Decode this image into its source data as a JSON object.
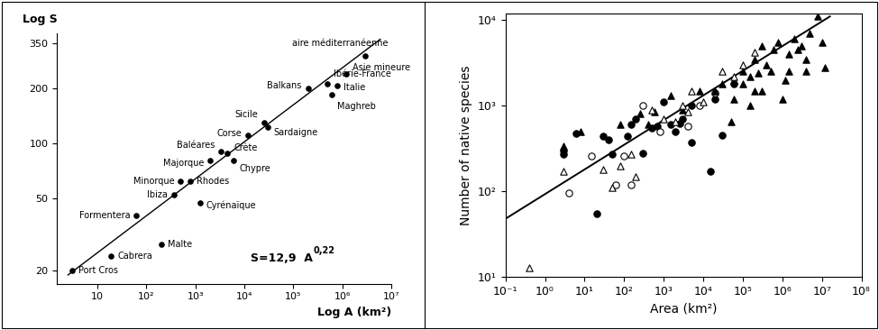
{
  "chart_data": [
    {
      "type": "scatter",
      "log": true,
      "y_label": "Log S",
      "x_label": "Log A (km²)",
      "equation": {
        "base": "S=12,9  A",
        "exponent": "0,22"
      },
      "labels": [
        "Port Cros",
        "Cabrera",
        "Malte",
        "Formentera",
        "Ibiza",
        "Cyrénaïque",
        "Minorque",
        "Rhodes",
        "Majorque",
        "Baléares",
        "Crète",
        "Chypre",
        "Corse",
        "Sicile",
        "Sardaigne",
        "Balkans",
        "Ibérie-France",
        "Italie",
        "Maghreb",
        "Asie mineure",
        "aire méditerranéenne"
      ],
      "x": [
        3,
        19,
        200,
        62,
        360,
        1250,
        500,
        800,
        2000,
        3300,
        4500,
        6000,
        12000,
        25000,
        30000,
        200000,
        500000,
        800000,
        600000,
        1200000,
        3000000
      ],
      "values": [
        20,
        24,
        28,
        40,
        52,
        47,
        62,
        62,
        80,
        90,
        88,
        80,
        110,
        130,
        122,
        200,
        210,
        205,
        185,
        240,
        300
      ],
      "color": "#000000",
      "marker": "circle",
      "fit_line": {
        "x": [
          2.5,
          6000000
        ],
        "values": [
          19,
          370
        ]
      },
      "xlim": [
        1.5,
        10000000
      ],
      "xticks": [
        10,
        {
          "value": 100,
          "label": "10²"
        },
        {
          "value": 1000,
          "label": "10³"
        },
        {
          "value": 10000,
          "label": "10⁴"
        },
        {
          "value": 100000,
          "label": "10⁵"
        },
        {
          "value": 1000000,
          "label": "10⁶"
        },
        {
          "value": 10000000,
          "label": "10⁷"
        }
      ],
      "ylim": [
        17,
        400
      ],
      "yticks": [
        20,
        50,
        100,
        200,
        350
      ]
    },
    {
      "type": "scatter",
      "log": true,
      "x_label": "Area (km²)",
      "y_label": "Number of native species",
      "series": [
        {
          "marker": "circle",
          "color": "#000000",
          "x": [
            3,
            3,
            6,
            20,
            30,
            40,
            50,
            120,
            150,
            200,
            300,
            500,
            700,
            1000,
            1500,
            2000,
            2500,
            3000,
            5000,
            5000,
            15000,
            20000,
            30000,
            60000
          ],
          "values": [
            270,
            300,
            480,
            55,
            440,
            400,
            270,
            440,
            600,
            700,
            280,
            550,
            580,
            1100,
            600,
            500,
            620,
            700,
            370,
            1000,
            170,
            1200,
            450,
            1800
          ]
        },
        {
          "marker": "circle",
          "color": "#ffffff",
          "x": [
            4,
            15,
            60,
            100,
            150,
            300,
            800,
            4000,
            8000,
            20000
          ],
          "values": [
            95,
            260,
            120,
            260,
            120,
            1000,
            500,
            580,
            1000,
            1400
          ]
        },
        {
          "marker": "triangle",
          "color": "#000000",
          "x": [
            3,
            8,
            80,
            250,
            400,
            600,
            1500,
            3000,
            8000,
            20000,
            30000,
            60000,
            100000,
            150000,
            200000,
            200000,
            300000,
            400000,
            500000,
            600000,
            800000,
            1000000,
            1200000,
            1500000,
            2000000,
            2500000,
            3000000,
            4000000,
            4000000,
            5000000,
            8000000,
            10000000,
            12000000,
            150000,
            60000,
            250000,
            1500000,
            50000,
            100000,
            300000
          ],
          "values": [
            340,
            500,
            600,
            800,
            600,
            850,
            1300,
            900,
            1500,
            1500,
            1800,
            2000,
            2500,
            2200,
            1500,
            3500,
            5000,
            3000,
            2500,
            4500,
            5500,
            1200,
            2000,
            2500,
            6000,
            4500,
            5000,
            3500,
            2500,
            7000,
            11000,
            5500,
            2800,
            1000,
            1200,
            2400,
            4000,
            650,
            1800,
            1500
          ]
        },
        {
          "marker": "triangle",
          "color": "#ffffff",
          "x": [
            0.4,
            3,
            30,
            50,
            80,
            150,
            200,
            500,
            1000,
            2000,
            3000,
            5000,
            4000,
            10000,
            30000,
            60000,
            200000,
            100000
          ],
          "values": [
            13,
            170,
            180,
            110,
            200,
            270,
            150,
            900,
            700,
            650,
            1000,
            1500,
            850,
            1100,
            2500,
            2200,
            4200,
            3000
          ]
        }
      ],
      "fit_line": {
        "x": [
          0.1,
          16000000
        ],
        "values": [
          48,
          11000
        ]
      },
      "xlim": [
        0.1,
        100000000
      ],
      "xticks": [
        {
          "value": 0.1,
          "label": "10⁻¹"
        },
        {
          "value": 1,
          "label": "10⁰"
        },
        {
          "value": 10,
          "label": "10¹"
        },
        {
          "value": 100,
          "label": "10²"
        },
        {
          "value": 1000,
          "label": "10³"
        },
        {
          "value": 10000,
          "label": "10⁴"
        },
        {
          "value": 100000,
          "label": "10⁵"
        },
        {
          "value": 1000000,
          "label": "10⁶"
        },
        {
          "value": 10000000,
          "label": "10⁷"
        },
        {
          "value": 100000000,
          "label": "10⁸"
        }
      ],
      "ylim": [
        10,
        12000
      ],
      "yticks": [
        {
          "value": 10,
          "label": "10¹"
        },
        {
          "value": 100,
          "label": "10²"
        },
        {
          "value": 1000,
          "label": "10³"
        },
        {
          "value": 10000,
          "label": "10⁴"
        }
      ]
    }
  ]
}
